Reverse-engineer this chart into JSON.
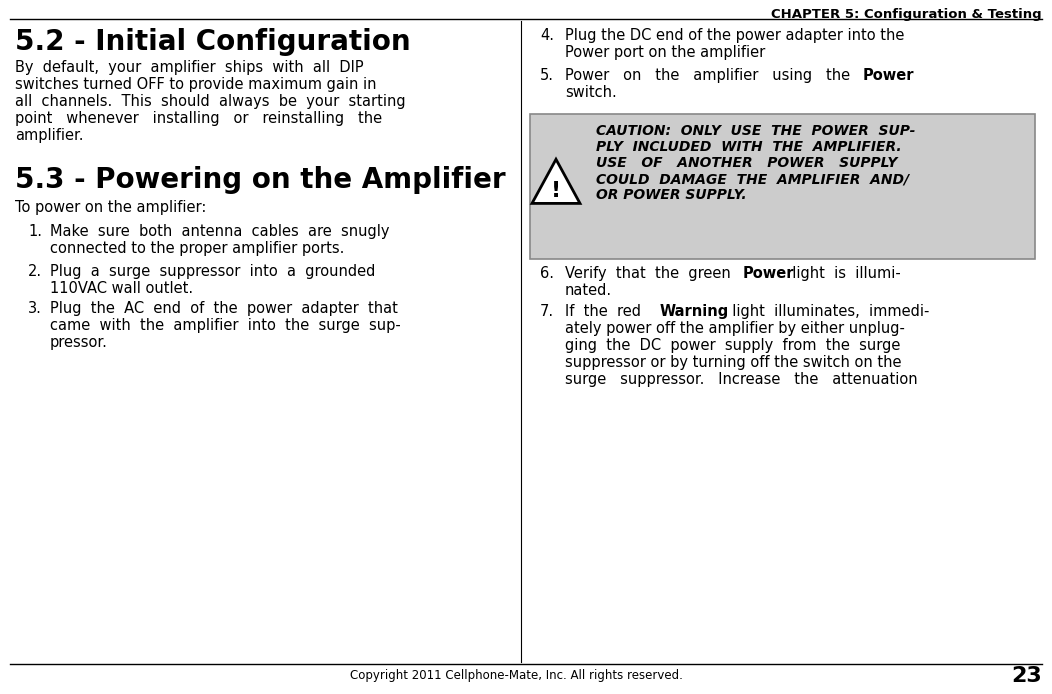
{
  "bg_color": "#ffffff",
  "header_text": "CHAPTER 5: Configuration & Testing",
  "footer_copyright": "Copyright 2011 Cellphone-Mate, Inc. All rights reserved.",
  "footer_page": "23",
  "section1_title": "5.2 - Initial Configuration",
  "section2_title": "5.3 - Powering on the Amplifier",
  "section2_intro": "To power on the amplifier:",
  "caution_bg": "#cccccc",
  "caution_border": "#888888",
  "header_line_color": "#000000",
  "footer_line_color": "#000000",
  "divider_color": "#000000",
  "text_color": "#000000"
}
